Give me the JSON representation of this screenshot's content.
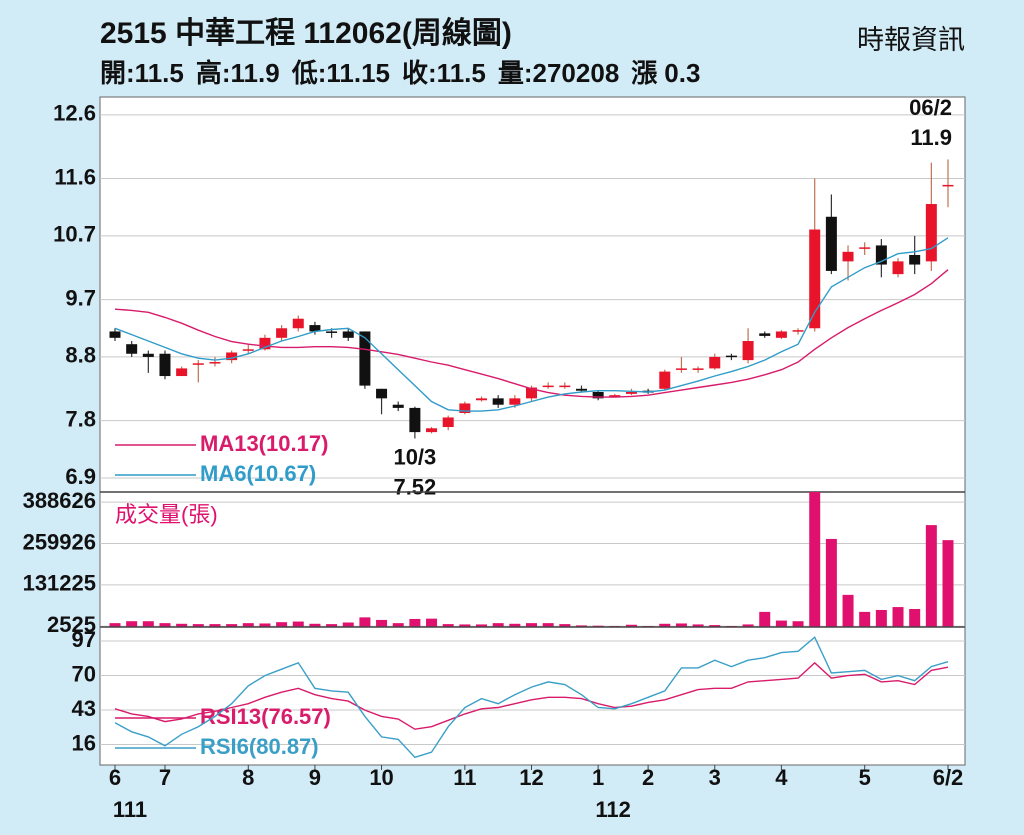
{
  "chart_data": [
    {
      "type": "candlestick",
      "title": "2515  中華工程 112062(周線圖)",
      "source": "時報資訊",
      "summary": [
        {
          "label": "開:",
          "value": 11.5
        },
        {
          "label": "高:",
          "value": 11.9
        },
        {
          "label": "低:",
          "value": 11.15
        },
        {
          "label": "收:",
          "value": 11.5
        },
        {
          "label": "量:",
          "value": 270208
        },
        {
          "label": "漲",
          "value": 0.3
        }
      ],
      "open": [
        9.2,
        9.0,
        8.85,
        8.85,
        8.5,
        8.68,
        8.7,
        8.75,
        8.9,
        8.92,
        9.1,
        9.25,
        9.3,
        9.2,
        9.2,
        9.2,
        8.3,
        8.05,
        8.0,
        7.62,
        7.7,
        7.92,
        8.12,
        8.15,
        8.05,
        8.15,
        8.33,
        8.33,
        8.3,
        8.25,
        8.19,
        8.22,
        8.27,
        8.3,
        8.6,
        8.6,
        8.62,
        8.82,
        8.75,
        9.17,
        9.1,
        9.2,
        9.25,
        11.0,
        10.3,
        10.5,
        10.55,
        10.1,
        10.4,
        10.3,
        11.5
      ],
      "high": [
        9.25,
        9.05,
        8.9,
        8.9,
        8.65,
        8.75,
        8.8,
        8.9,
        9.0,
        9.15,
        9.3,
        9.45,
        9.35,
        9.25,
        9.25,
        9.2,
        8.3,
        8.1,
        8.02,
        7.7,
        7.88,
        8.1,
        8.18,
        8.2,
        8.2,
        8.35,
        8.4,
        8.4,
        8.35,
        8.28,
        8.22,
        8.3,
        8.3,
        8.6,
        8.8,
        8.65,
        8.85,
        8.85,
        9.25,
        9.2,
        9.22,
        9.25,
        11.6,
        11.35,
        10.55,
        10.6,
        10.65,
        10.35,
        10.7,
        11.85,
        11.9
      ],
      "low": [
        9.05,
        8.8,
        8.55,
        8.45,
        8.5,
        8.4,
        8.65,
        8.7,
        8.85,
        8.9,
        9.05,
        9.2,
        9.15,
        9.1,
        9.05,
        8.3,
        7.9,
        7.95,
        7.52,
        7.6,
        7.65,
        7.9,
        8.1,
        8.0,
        8.0,
        8.1,
        8.3,
        8.3,
        8.25,
        8.12,
        8.18,
        8.2,
        8.22,
        8.28,
        8.55,
        8.55,
        8.6,
        8.75,
        8.7,
        9.1,
        9.08,
        9.15,
        9.2,
        10.1,
        10.0,
        10.4,
        10.05,
        10.05,
        10.1,
        10.15,
        11.15
      ],
      "close": [
        9.1,
        8.85,
        8.8,
        8.5,
        8.62,
        8.7,
        8.72,
        8.87,
        8.92,
        9.1,
        9.25,
        9.4,
        9.2,
        9.18,
        9.1,
        8.35,
        8.15,
        8.0,
        7.62,
        7.68,
        7.85,
        8.07,
        8.15,
        8.05,
        8.15,
        8.32,
        8.35,
        8.35,
        8.27,
        8.15,
        8.2,
        8.25,
        8.24,
        8.57,
        8.62,
        8.62,
        8.8,
        8.8,
        9.05,
        9.13,
        9.2,
        9.22,
        10.8,
        10.15,
        10.45,
        10.52,
        10.25,
        10.3,
        10.25,
        11.2,
        11.5
      ],
      "up_color": "#e8142a",
      "down_color": "#111111",
      "series": [
        {
          "name": "MA13(10.17)",
          "color": "#d81b6a",
          "values": [
            9.55,
            9.53,
            9.5,
            9.42,
            9.33,
            9.22,
            9.12,
            9.04,
            9.0,
            8.97,
            8.95,
            8.95,
            8.96,
            8.96,
            8.95,
            8.92,
            8.88,
            8.84,
            8.78,
            8.72,
            8.67,
            8.6,
            8.53,
            8.46,
            8.38,
            8.3,
            8.24,
            8.2,
            8.18,
            8.17,
            8.17,
            8.18,
            8.2,
            8.24,
            8.28,
            8.32,
            8.36,
            8.4,
            8.45,
            8.52,
            8.6,
            8.72,
            8.92,
            9.1,
            9.26,
            9.4,
            9.53,
            9.65,
            9.78,
            9.95,
            10.17
          ]
        },
        {
          "name": "MA6(10.67)",
          "color": "#2f9cc9",
          "values": [
            9.25,
            9.15,
            9.05,
            8.95,
            8.85,
            8.78,
            8.75,
            8.78,
            8.85,
            8.95,
            9.05,
            9.12,
            9.2,
            9.23,
            9.25,
            9.1,
            8.85,
            8.6,
            8.35,
            8.1,
            7.97,
            7.95,
            7.95,
            7.97,
            8.03,
            8.1,
            8.17,
            8.22,
            8.25,
            8.27,
            8.27,
            8.26,
            8.25,
            8.28,
            8.35,
            8.42,
            8.5,
            8.57,
            8.65,
            8.75,
            8.88,
            9.0,
            9.5,
            9.9,
            10.05,
            10.2,
            10.3,
            10.42,
            10.45,
            10.5,
            10.67
          ]
        }
      ],
      "annotations": [
        {
          "label": "10/3",
          "value": 7.52,
          "at": "low"
        },
        {
          "label": "06/2",
          "value": 11.9,
          "at": "high"
        }
      ],
      "ylim": [
        6.68,
        12.88
      ],
      "yticks": [
        6.9,
        7.8,
        8.8,
        9.7,
        10.7,
        11.6,
        12.6
      ],
      "grid": true
    },
    {
      "type": "bar",
      "label": "成交量(張)",
      "color": "#e0116e",
      "values": [
        12000,
        18000,
        18000,
        12000,
        10000,
        9000,
        9000,
        9000,
        12000,
        11000,
        15000,
        17000,
        10000,
        9000,
        14000,
        30000,
        22000,
        12000,
        25000,
        26000,
        9000,
        8000,
        8000,
        12000,
        10000,
        12000,
        12000,
        9000,
        5000,
        4000,
        3000,
        7000,
        3000,
        10000,
        11000,
        8000,
        6000,
        3000,
        8000,
        47000,
        20000,
        18000,
        420000,
        274000,
        100000,
        47000,
        53000,
        62000,
        56000,
        317000,
        270208
      ],
      "ylim": [
        0,
        420000
      ],
      "yticks": [
        2525,
        131225,
        259926,
        388626
      ],
      "grid": true
    },
    {
      "type": "line",
      "series": [
        {
          "name": "RSI13(76.57)",
          "color": "#d81b6a",
          "values": [
            44,
            40,
            38,
            34,
            36,
            40,
            42,
            45,
            48,
            53,
            57,
            60,
            55,
            52,
            50,
            43,
            38,
            36,
            28,
            30,
            35,
            40,
            44,
            45,
            48,
            51,
            53,
            53,
            52,
            48,
            45,
            46,
            49,
            51,
            55,
            59,
            60,
            60,
            65,
            66,
            67,
            68,
            80,
            68,
            70,
            71,
            65,
            66,
            63,
            74,
            76.57
          ]
        },
        {
          "name": "RSI6(80.87)",
          "color": "#3a9fc7",
          "values": [
            33,
            26,
            22,
            15,
            24,
            30,
            38,
            48,
            62,
            70,
            75,
            80,
            60,
            58,
            57,
            38,
            22,
            20,
            6,
            10,
            30,
            45,
            52,
            48,
            55,
            61,
            65,
            63,
            55,
            45,
            44,
            48,
            53,
            58,
            76,
            76,
            82,
            77,
            82,
            84,
            88,
            89,
            100,
            72,
            73,
            74,
            67,
            70,
            66,
            77,
            80.87
          ]
        }
      ],
      "categories": [
        "6",
        null,
        null,
        "7",
        null,
        null,
        null,
        null,
        "8",
        null,
        null,
        null,
        "9",
        null,
        null,
        null,
        "10",
        null,
        null,
        null,
        null,
        "11",
        null,
        null,
        null,
        "12",
        null,
        null,
        null,
        "1",
        null,
        null,
        "2",
        null,
        null,
        null,
        "3",
        null,
        null,
        null,
        "4",
        null,
        null,
        null,
        null,
        "5",
        null,
        null,
        null,
        null,
        "6/2"
      ],
      "year_labels": [
        {
          "label": "111",
          "at": "6"
        },
        {
          "label": "112",
          "at": "1"
        }
      ],
      "ylim": [
        0,
        108
      ],
      "yticks": [
        16,
        43,
        70,
        97
      ],
      "grid": true
    }
  ]
}
